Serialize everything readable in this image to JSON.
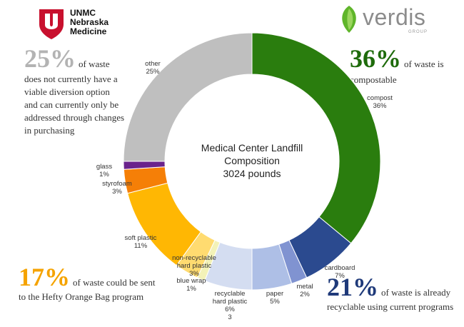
{
  "logos": {
    "unmc_line1": "UNMC",
    "unmc_line2": "Nebraska",
    "unmc_line3": "Medicine",
    "verdis_name": "verdis",
    "verdis_sub": "GROUP"
  },
  "callouts": {
    "other": {
      "percent": "25%",
      "lead": "of waste",
      "body": "does not currently have a\nviable diversion option\nand can currently only be\naddressed through changes\n in purchasing",
      "color": "#b3b3b3"
    },
    "compost": {
      "percent": "36%",
      "lead": "of waste is",
      "body": "compostable",
      "color": "#1e6b0b"
    },
    "orange": {
      "percent": "17%",
      "lead": "of waste could be sent",
      "body": "to the Hefty Orange Bag program",
      "color": "#f5a300"
    },
    "recycle": {
      "percent": "21%",
      "lead": "of waste is already",
      "body": "recyclable using current programs",
      "color": "#1f3a7a"
    }
  },
  "chart_data": {
    "type": "pie",
    "donut": true,
    "title_lines": [
      "Medical Center Landfill",
      "Composition",
      "3024 pounds"
    ],
    "slices": [
      {
        "name": "compost",
        "value": 36,
        "label": "compost\n36%",
        "color": "#2a7d0e"
      },
      {
        "name": "cardboard",
        "value": 7,
        "label": "cardboard\n7%",
        "color": "#2b4a8f"
      },
      {
        "name": "metal",
        "value": 2,
        "label": "metal\n2%",
        "color": "#8093d1"
      },
      {
        "name": "paper",
        "value": 5,
        "label": "paper\n5%",
        "color": "#aebfe6"
      },
      {
        "name": "recyclable hard plastic",
        "value": 6,
        "label": "recyclable\nhard plastic\n6%\n3",
        "color": "#d4ddf1"
      },
      {
        "name": "blue wrap",
        "value": 1,
        "label": "blue wrap\n1%",
        "color": "#f3f2b8"
      },
      {
        "name": "non-recyclable hard plastic",
        "value": 3,
        "label": "non-recyclable\nhard plastic\n3%",
        "color": "#ffdb70"
      },
      {
        "name": "soft plastic",
        "value": 11,
        "label": "soft plastic\n11%",
        "color": "#ffb703"
      },
      {
        "name": "styrofoam",
        "value": 3,
        "label": "styrofoam\n3%",
        "color": "#f57f07"
      },
      {
        "name": "glass",
        "value": 1,
        "label": "glass\n1%",
        "color": "#6a238c"
      },
      {
        "name": "other",
        "value": 25,
        "label": "other\n25%",
        "color": "#bfbfbf"
      }
    ]
  }
}
